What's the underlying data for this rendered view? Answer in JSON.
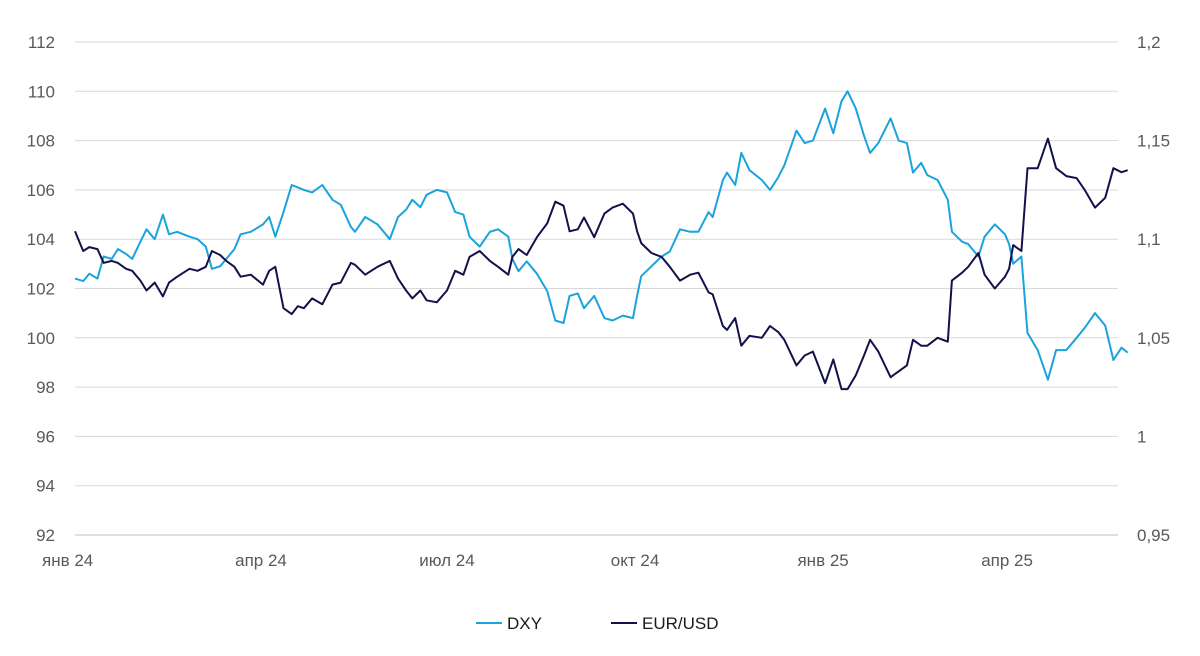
{
  "chart_data": {
    "type": "line",
    "title": "",
    "xlabel": "",
    "ylabel": "",
    "x_ticks": [
      "янв 24",
      "апр 24",
      "июл 24",
      "окт 24",
      "янв 25",
      "апр 25"
    ],
    "y_left": {
      "ticks": [
        "92",
        "94",
        "96",
        "98",
        "100",
        "102",
        "104",
        "106",
        "108",
        "110",
        "112"
      ],
      "ylim": [
        92,
        112
      ]
    },
    "y_right": {
      "ticks": [
        "0,95",
        "1",
        "1,05",
        "1,1",
        "1,15",
        "1,2"
      ],
      "ylim": [
        0.95,
        1.2
      ]
    },
    "x_range": [
      "2024-01-01",
      "2025-05-31"
    ],
    "grid": "horizontal",
    "legend_position": "bottom-center",
    "series": [
      {
        "name": "DXY",
        "axis": "left",
        "color": "#1aa3dc",
        "points": [
          [
            "2024-01-01",
            102.4
          ],
          [
            "2024-01-05",
            102.3
          ],
          [
            "2024-01-08",
            102.6
          ],
          [
            "2024-01-12",
            102.4
          ],
          [
            "2024-01-15",
            103.3
          ],
          [
            "2024-01-19",
            103.2
          ],
          [
            "2024-01-22",
            103.6
          ],
          [
            "2024-01-26",
            103.4
          ],
          [
            "2024-01-29",
            103.2
          ],
          [
            "2024-02-02",
            103.9
          ],
          [
            "2024-02-05",
            104.4
          ],
          [
            "2024-02-09",
            104.0
          ],
          [
            "2024-02-13",
            105.0
          ],
          [
            "2024-02-16",
            104.2
          ],
          [
            "2024-02-20",
            104.3
          ],
          [
            "2024-02-26",
            104.1
          ],
          [
            "2024-03-01",
            104.0
          ],
          [
            "2024-03-05",
            103.7
          ],
          [
            "2024-03-08",
            102.8
          ],
          [
            "2024-03-12",
            102.9
          ],
          [
            "2024-03-15",
            103.2
          ],
          [
            "2024-03-19",
            103.6
          ],
          [
            "2024-03-22",
            104.2
          ],
          [
            "2024-03-27",
            104.3
          ],
          [
            "2024-04-02",
            104.6
          ],
          [
            "2024-04-05",
            104.9
          ],
          [
            "2024-04-08",
            104.1
          ],
          [
            "2024-04-12",
            105.1
          ],
          [
            "2024-04-16",
            106.2
          ],
          [
            "2024-04-19",
            106.1
          ],
          [
            "2024-04-22",
            106.0
          ],
          [
            "2024-04-26",
            105.9
          ],
          [
            "2024-05-01",
            106.2
          ],
          [
            "2024-05-06",
            105.6
          ],
          [
            "2024-05-10",
            105.4
          ],
          [
            "2024-05-15",
            104.5
          ],
          [
            "2024-05-17",
            104.3
          ],
          [
            "2024-05-22",
            104.9
          ],
          [
            "2024-05-28",
            104.6
          ],
          [
            "2024-06-03",
            104.0
          ],
          [
            "2024-06-07",
            104.9
          ],
          [
            "2024-06-11",
            105.2
          ],
          [
            "2024-06-14",
            105.6
          ],
          [
            "2024-06-18",
            105.3
          ],
          [
            "2024-06-21",
            105.8
          ],
          [
            "2024-06-26",
            106.0
          ],
          [
            "2024-07-01",
            105.9
          ],
          [
            "2024-07-05",
            105.1
          ],
          [
            "2024-07-09",
            105.0
          ],
          [
            "2024-07-12",
            104.1
          ],
          [
            "2024-07-17",
            103.7
          ],
          [
            "2024-07-22",
            104.3
          ],
          [
            "2024-07-26",
            104.4
          ],
          [
            "2024-07-31",
            104.1
          ],
          [
            "2024-08-02",
            103.2
          ],
          [
            "2024-08-05",
            102.7
          ],
          [
            "2024-08-09",
            103.1
          ],
          [
            "2024-08-14",
            102.6
          ],
          [
            "2024-08-19",
            101.9
          ],
          [
            "2024-08-23",
            100.7
          ],
          [
            "2024-08-27",
            100.6
          ],
          [
            "2024-08-30",
            101.7
          ],
          [
            "2024-09-03",
            101.8
          ],
          [
            "2024-09-06",
            101.2
          ],
          [
            "2024-09-11",
            101.7
          ],
          [
            "2024-09-16",
            100.8
          ],
          [
            "2024-09-20",
            100.7
          ],
          [
            "2024-09-25",
            100.9
          ],
          [
            "2024-09-30",
            100.8
          ],
          [
            "2024-10-02",
            101.7
          ],
          [
            "2024-10-04",
            102.5
          ],
          [
            "2024-10-09",
            102.9
          ],
          [
            "2024-10-14",
            103.3
          ],
          [
            "2024-10-18",
            103.5
          ],
          [
            "2024-10-23",
            104.4
          ],
          [
            "2024-10-28",
            104.3
          ],
          [
            "2024-11-01",
            104.3
          ],
          [
            "2024-11-06",
            105.1
          ],
          [
            "2024-11-08",
            104.9
          ],
          [
            "2024-11-13",
            106.4
          ],
          [
            "2024-11-15",
            106.7
          ],
          [
            "2024-11-19",
            106.2
          ],
          [
            "2024-11-22",
            107.5
          ],
          [
            "2024-11-26",
            106.8
          ],
          [
            "2024-12-02",
            106.4
          ],
          [
            "2024-12-06",
            106.0
          ],
          [
            "2024-12-10",
            106.5
          ],
          [
            "2024-12-13",
            107.0
          ],
          [
            "2024-12-19",
            108.4
          ],
          [
            "2024-12-23",
            107.9
          ],
          [
            "2024-12-27",
            108.0
          ],
          [
            "2025-01-02",
            109.3
          ],
          [
            "2025-01-06",
            108.3
          ],
          [
            "2025-01-10",
            109.6
          ],
          [
            "2025-01-13",
            110.0
          ],
          [
            "2025-01-17",
            109.3
          ],
          [
            "2025-01-21",
            108.2
          ],
          [
            "2025-01-24",
            107.5
          ],
          [
            "2025-01-28",
            107.9
          ],
          [
            "2025-02-03",
            108.9
          ],
          [
            "2025-02-07",
            108.0
          ],
          [
            "2025-02-11",
            107.9
          ],
          [
            "2025-02-14",
            106.7
          ],
          [
            "2025-02-18",
            107.1
          ],
          [
            "2025-02-21",
            106.6
          ],
          [
            "2025-02-26",
            106.4
          ],
          [
            "2025-03-03",
            105.6
          ],
          [
            "2025-03-05",
            104.3
          ],
          [
            "2025-03-10",
            103.9
          ],
          [
            "2025-03-13",
            103.8
          ],
          [
            "2025-03-18",
            103.3
          ],
          [
            "2025-03-21",
            104.1
          ],
          [
            "2025-03-26",
            104.6
          ],
          [
            "2025-03-31",
            104.2
          ],
          [
            "2025-04-02",
            103.8
          ],
          [
            "2025-04-04",
            103.0
          ],
          [
            "2025-04-08",
            103.3
          ],
          [
            "2025-04-11",
            100.2
          ],
          [
            "2025-04-16",
            99.5
          ],
          [
            "2025-04-21",
            98.3
          ],
          [
            "2025-04-25",
            99.5
          ],
          [
            "2025-04-30",
            99.5
          ],
          [
            "2025-05-05",
            100.0
          ],
          [
            "2025-05-09",
            100.4
          ],
          [
            "2025-05-14",
            101.0
          ],
          [
            "2025-05-19",
            100.5
          ],
          [
            "2025-05-23",
            99.1
          ],
          [
            "2025-05-27",
            99.6
          ],
          [
            "2025-05-30",
            99.4
          ]
        ]
      },
      {
        "name": "EUR/USD",
        "axis": "right",
        "color": "#12114a",
        "points": [
          [
            "2024-01-01",
            1.104
          ],
          [
            "2024-01-05",
            1.094
          ],
          [
            "2024-01-08",
            1.096
          ],
          [
            "2024-01-12",
            1.095
          ],
          [
            "2024-01-15",
            1.088
          ],
          [
            "2024-01-19",
            1.089
          ],
          [
            "2024-01-22",
            1.088
          ],
          [
            "2024-01-26",
            1.085
          ],
          [
            "2024-01-29",
            1.084
          ],
          [
            "2024-02-02",
            1.079
          ],
          [
            "2024-02-05",
            1.074
          ],
          [
            "2024-02-09",
            1.078
          ],
          [
            "2024-02-13",
            1.071
          ],
          [
            "2024-02-16",
            1.078
          ],
          [
            "2024-02-20",
            1.081
          ],
          [
            "2024-02-26",
            1.085
          ],
          [
            "2024-03-01",
            1.084
          ],
          [
            "2024-03-05",
            1.086
          ],
          [
            "2024-03-08",
            1.094
          ],
          [
            "2024-03-12",
            1.092
          ],
          [
            "2024-03-15",
            1.089
          ],
          [
            "2024-03-19",
            1.086
          ],
          [
            "2024-03-22",
            1.081
          ],
          [
            "2024-03-27",
            1.082
          ],
          [
            "2024-04-02",
            1.077
          ],
          [
            "2024-04-05",
            1.084
          ],
          [
            "2024-04-08",
            1.086
          ],
          [
            "2024-04-12",
            1.065
          ],
          [
            "2024-04-16",
            1.062
          ],
          [
            "2024-04-19",
            1.066
          ],
          [
            "2024-04-22",
            1.065
          ],
          [
            "2024-04-26",
            1.07
          ],
          [
            "2024-05-01",
            1.067
          ],
          [
            "2024-05-06",
            1.077
          ],
          [
            "2024-05-10",
            1.078
          ],
          [
            "2024-05-15",
            1.088
          ],
          [
            "2024-05-17",
            1.087
          ],
          [
            "2024-05-22",
            1.082
          ],
          [
            "2024-05-28",
            1.086
          ],
          [
            "2024-06-03",
            1.089
          ],
          [
            "2024-06-07",
            1.08
          ],
          [
            "2024-06-11",
            1.074
          ],
          [
            "2024-06-14",
            1.07
          ],
          [
            "2024-06-18",
            1.074
          ],
          [
            "2024-06-21",
            1.069
          ],
          [
            "2024-06-26",
            1.068
          ],
          [
            "2024-07-01",
            1.074
          ],
          [
            "2024-07-05",
            1.084
          ],
          [
            "2024-07-09",
            1.082
          ],
          [
            "2024-07-12",
            1.091
          ],
          [
            "2024-07-17",
            1.094
          ],
          [
            "2024-07-22",
            1.089
          ],
          [
            "2024-07-26",
            1.086
          ],
          [
            "2024-07-31",
            1.082
          ],
          [
            "2024-08-02",
            1.091
          ],
          [
            "2024-08-05",
            1.095
          ],
          [
            "2024-08-09",
            1.092
          ],
          [
            "2024-08-14",
            1.101
          ],
          [
            "2024-08-19",
            1.108
          ],
          [
            "2024-08-23",
            1.119
          ],
          [
            "2024-08-27",
            1.117
          ],
          [
            "2024-08-30",
            1.104
          ],
          [
            "2024-09-03",
            1.105
          ],
          [
            "2024-09-06",
            1.111
          ],
          [
            "2024-09-11",
            1.101
          ],
          [
            "2024-09-16",
            1.113
          ],
          [
            "2024-09-20",
            1.116
          ],
          [
            "2024-09-25",
            1.118
          ],
          [
            "2024-09-30",
            1.113
          ],
          [
            "2024-10-02",
            1.104
          ],
          [
            "2024-10-04",
            1.098
          ],
          [
            "2024-10-09",
            1.093
          ],
          [
            "2024-10-14",
            1.091
          ],
          [
            "2024-10-18",
            1.086
          ],
          [
            "2024-10-23",
            1.079
          ],
          [
            "2024-10-28",
            1.082
          ],
          [
            "2024-11-01",
            1.083
          ],
          [
            "2024-11-06",
            1.073
          ],
          [
            "2024-11-08",
            1.072
          ],
          [
            "2024-11-13",
            1.056
          ],
          [
            "2024-11-15",
            1.054
          ],
          [
            "2024-11-19",
            1.06
          ],
          [
            "2024-11-22",
            1.046
          ],
          [
            "2024-11-26",
            1.051
          ],
          [
            "2024-12-02",
            1.05
          ],
          [
            "2024-12-06",
            1.056
          ],
          [
            "2024-12-10",
            1.053
          ],
          [
            "2024-12-13",
            1.049
          ],
          [
            "2024-12-19",
            1.036
          ],
          [
            "2024-12-23",
            1.041
          ],
          [
            "2024-12-27",
            1.043
          ],
          [
            "2025-01-02",
            1.027
          ],
          [
            "2025-01-06",
            1.039
          ],
          [
            "2025-01-10",
            1.024
          ],
          [
            "2025-01-13",
            1.024
          ],
          [
            "2025-01-17",
            1.031
          ],
          [
            "2025-01-21",
            1.041
          ],
          [
            "2025-01-24",
            1.049
          ],
          [
            "2025-01-28",
            1.043
          ],
          [
            "2025-02-03",
            1.03
          ],
          [
            "2025-02-07",
            1.033
          ],
          [
            "2025-02-11",
            1.036
          ],
          [
            "2025-02-14",
            1.049
          ],
          [
            "2025-02-18",
            1.046
          ],
          [
            "2025-02-21",
            1.046
          ],
          [
            "2025-02-26",
            1.05
          ],
          [
            "2025-03-03",
            1.048
          ],
          [
            "2025-03-05",
            1.079
          ],
          [
            "2025-03-10",
            1.083
          ],
          [
            "2025-03-13",
            1.086
          ],
          [
            "2025-03-18",
            1.093
          ],
          [
            "2025-03-21",
            1.082
          ],
          [
            "2025-03-26",
            1.075
          ],
          [
            "2025-03-31",
            1.081
          ],
          [
            "2025-04-02",
            1.085
          ],
          [
            "2025-04-04",
            1.097
          ],
          [
            "2025-04-08",
            1.094
          ],
          [
            "2025-04-11",
            1.136
          ],
          [
            "2025-04-16",
            1.136
          ],
          [
            "2025-04-21",
            1.151
          ],
          [
            "2025-04-25",
            1.136
          ],
          [
            "2025-04-30",
            1.132
          ],
          [
            "2025-05-05",
            1.131
          ],
          [
            "2025-05-09",
            1.125
          ],
          [
            "2025-05-14",
            1.116
          ],
          [
            "2025-05-19",
            1.121
          ],
          [
            "2025-05-23",
            1.136
          ],
          [
            "2025-05-27",
            1.134
          ],
          [
            "2025-05-30",
            1.135
          ]
        ]
      }
    ]
  }
}
